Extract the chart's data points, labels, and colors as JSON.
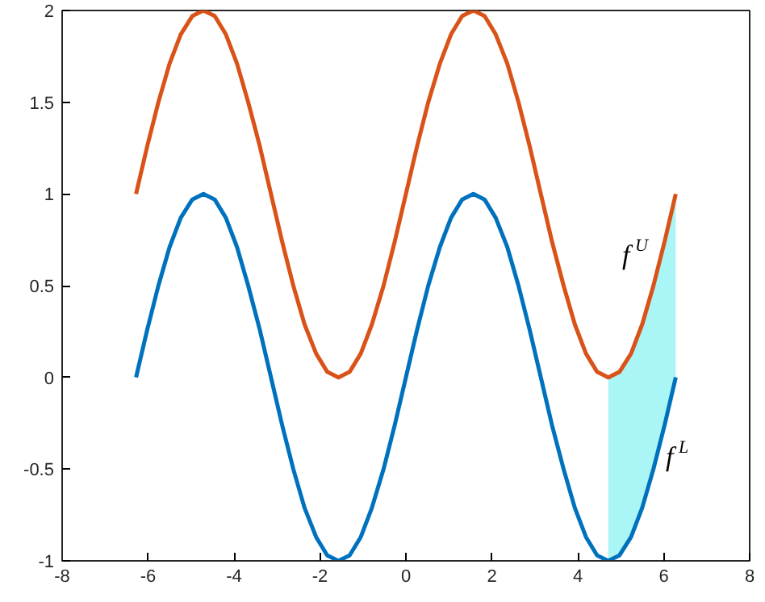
{
  "chart_data": {
    "type": "line",
    "xlim": [
      -8,
      8
    ],
    "xticks": [
      -8,
      -6,
      -4,
      -2,
      0,
      2,
      4,
      6,
      8
    ],
    "ylim": [
      -1,
      2
    ],
    "yticks": [
      -1,
      -0.5,
      0,
      0.5,
      1,
      1.5,
      2
    ],
    "grid": false,
    "marker": "none",
    "line_style": "solid",
    "x": [
      -6.28,
      -6.02,
      -5.76,
      -5.5,
      -5.24,
      -4.97,
      -4.71,
      -4.45,
      -4.19,
      -3.93,
      -3.67,
      -3.4,
      -3.14,
      -2.88,
      -2.62,
      -2.36,
      -2.09,
      -1.83,
      -1.57,
      -1.31,
      -1.05,
      -0.79,
      -0.52,
      -0.26,
      0,
      0.26,
      0.52,
      0.79,
      1.05,
      1.31,
      1.57,
      1.83,
      2.09,
      2.36,
      2.62,
      2.88,
      3.14,
      3.4,
      3.67,
      3.93,
      4.19,
      4.45,
      4.71,
      4.97,
      5.24,
      5.5,
      5.76,
      6.02,
      6.28
    ],
    "series": [
      {
        "color": "#d95319",
        "values": [
          1,
          1.26,
          1.5,
          1.71,
          1.87,
          1.97,
          2,
          1.97,
          1.87,
          1.71,
          1.5,
          1.26,
          1,
          0.74,
          0.5,
          0.29,
          0.13,
          0.03,
          0,
          0.03,
          0.13,
          0.29,
          0.5,
          0.74,
          1,
          1.26,
          1.5,
          1.71,
          1.87,
          1.97,
          2,
          1.97,
          1.87,
          1.71,
          1.5,
          1.26,
          1,
          0.74,
          0.5,
          0.29,
          0.13,
          0.03,
          0,
          0.03,
          0.13,
          0.29,
          0.5,
          0.74,
          1
        ],
        "lower": [
          null,
          null,
          null,
          null,
          null,
          null,
          null,
          null,
          null,
          null,
          null,
          null,
          null,
          null,
          null,
          null,
          null,
          null,
          null,
          null,
          null,
          null,
          null,
          null,
          null,
          null,
          null,
          null,
          null,
          null,
          null,
          null,
          null,
          null,
          null,
          null,
          null,
          null,
          null,
          null,
          null,
          null,
          -1,
          -0.97,
          -0.87,
          -0.71,
          -0.5,
          -0.26,
          0
        ],
        "upper": [
          null,
          null,
          null,
          null,
          null,
          null,
          null,
          null,
          null,
          null,
          null,
          null,
          null,
          null,
          null,
          null,
          null,
          null,
          null,
          null,
          null,
          null,
          null,
          null,
          null,
          null,
          null,
          null,
          null,
          null,
          null,
          null,
          null,
          null,
          null,
          null,
          null,
          null,
          null,
          null,
          null,
          null,
          0,
          0.03,
          0.13,
          0.29,
          0.5,
          0.74,
          1
        ]
      },
      {
        "color": "#0072bd",
        "values": [
          0,
          0.26,
          0.5,
          0.71,
          0.87,
          0.97,
          1,
          0.97,
          0.87,
          0.71,
          0.5,
          0.26,
          0,
          -0.26,
          -0.5,
          -0.71,
          -0.87,
          -0.97,
          -1,
          -0.97,
          -0.87,
          -0.71,
          -0.5,
          -0.26,
          0,
          0.26,
          0.5,
          0.71,
          0.87,
          0.97,
          1,
          0.97,
          0.87,
          0.71,
          0.5,
          0.26,
          0,
          -0.26,
          -0.5,
          -0.71,
          -0.87,
          -0.97,
          -1,
          -0.97,
          -0.87,
          -0.71,
          -0.5,
          -0.26,
          0
        ]
      }
    ],
    "annotations": [
      "f$^{U}$",
      "f$^{L}$"
    ]
  }
}
